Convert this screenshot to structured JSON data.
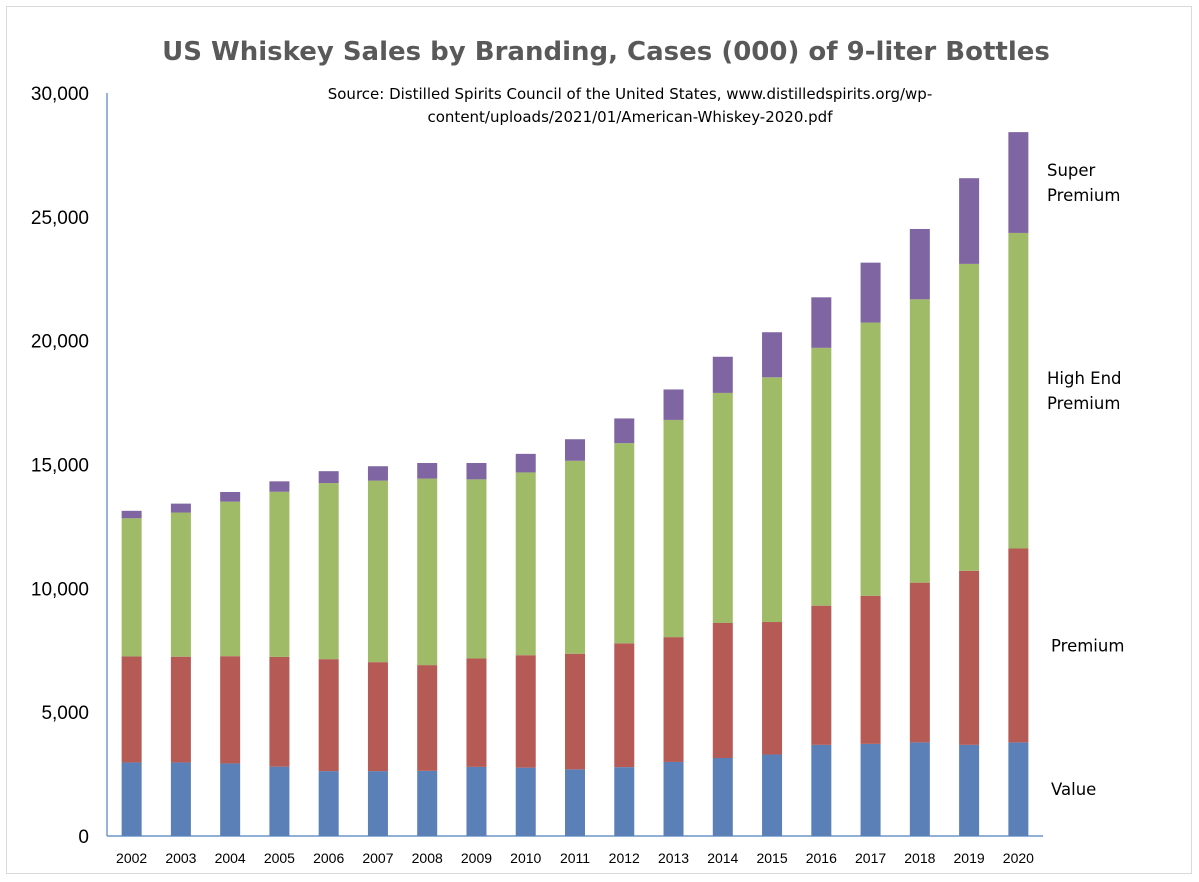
{
  "chart_data": {
    "type": "bar",
    "stacked": true,
    "title": "US Whiskey Sales by Branding, Cases (000) of 9-liter Bottles",
    "subtitle_lines": [
      "Source: Distilled Spirits Council of the United States, www.distilledspirits.org/wp-",
      "content/uploads/2021/01/American-Whiskey-2020.pdf"
    ],
    "xlabel": "",
    "ylabel": "",
    "ylim": [
      0,
      30000
    ],
    "yticks": [
      0,
      5000,
      10000,
      15000,
      20000,
      25000,
      30000
    ],
    "ytick_labels": [
      "0",
      "5,000",
      "10,000",
      "15,000",
      "20,000",
      "25,000",
      "30,000"
    ],
    "grid": false,
    "categories": [
      "2002",
      "2003",
      "2004",
      "2005",
      "2006",
      "2007",
      "2008",
      "2009",
      "2010",
      "2011",
      "2012",
      "2013",
      "2014",
      "2015",
      "2016",
      "2017",
      "2018",
      "2019",
      "2020"
    ],
    "series": [
      {
        "key": "value",
        "label_lines": [
          "Value"
        ],
        "color": "#5b80b8",
        "values": [
          2970,
          2970,
          2930,
          2800,
          2620,
          2620,
          2630,
          2790,
          2760,
          2690,
          2780,
          2990,
          3150,
          3290,
          3680,
          3720,
          3780,
          3680,
          3780
        ]
      },
      {
        "key": "premium",
        "label_lines": [
          "Premium"
        ],
        "color": "#b55a55",
        "values": [
          4280,
          4270,
          4330,
          4430,
          4520,
          4400,
          4270,
          4380,
          4540,
          4670,
          5000,
          5040,
          5450,
          5350,
          5620,
          5980,
          6450,
          7030,
          7830
        ]
      },
      {
        "key": "high_end_premium",
        "label_lines": [
          "High End",
          "Premium"
        ],
        "color": "#9fbb67",
        "values": [
          5580,
          5820,
          6240,
          6670,
          7110,
          7330,
          7530,
          7230,
          7380,
          7790,
          8080,
          8770,
          9290,
          9880,
          10410,
          11030,
          11440,
          12390,
          12740
        ]
      },
      {
        "key": "super_premium",
        "label_lines": [
          "Super",
          "Premium"
        ],
        "color": "#7f65a1",
        "values": [
          300,
          360,
          390,
          420,
          480,
          580,
          630,
          660,
          750,
          870,
          1000,
          1230,
          1460,
          1820,
          2040,
          2420,
          2840,
          3460,
          4070
        ]
      }
    ]
  }
}
